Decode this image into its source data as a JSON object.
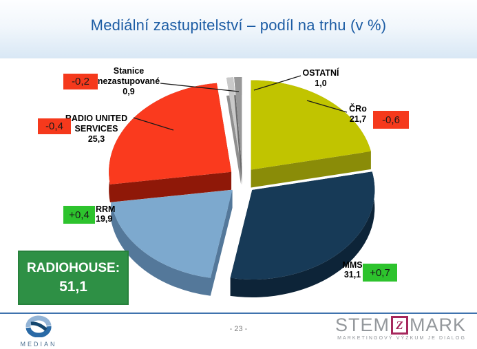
{
  "colors": {
    "title": "#1c5ca4",
    "badge_up": "#2dc32d",
    "badge_down": "#f5391c",
    "badge_text": "#1a1a1a",
    "footer_line": "#3f73ae"
  },
  "slide": {
    "title": "Mediální zastupitelství – podíl na trhu (v %)",
    "page_number": "- 23 -"
  },
  "chart_data": {
    "type": "pie",
    "style": "3d-exploded",
    "title": "Mediální zastupitelství – podíl na trhu (v %)",
    "unit": "% market share",
    "start_angle_deg": 0,
    "direction": "clockwise",
    "legend_position": "none",
    "slices": [
      {
        "label": "ČRo",
        "label_lines": [
          "ČRo"
        ],
        "value": 21.7,
        "value_label": "21,7",
        "change_label": "-0,6",
        "change": "down",
        "color": "#c1c400",
        "side_color": "#8a8c08"
      },
      {
        "label": "MMS",
        "label_lines": [
          "MMS"
        ],
        "value": 31.1,
        "value_label": "31,1",
        "change_label": "+0,7",
        "change": "up",
        "color": "#173a57",
        "side_color": "#0d2438"
      },
      {
        "label": "RRM",
        "label_lines": [
          "RRM"
        ],
        "value": 19.9,
        "value_label": "19,9",
        "change_label": "+0,4",
        "change": "up",
        "color": "#7da9ce",
        "side_color": "#54789a"
      },
      {
        "label": "RADIO UNITED SERVICES",
        "label_lines": [
          "RADIO UNITED",
          "SERVICES"
        ],
        "value": 25.3,
        "value_label": "25,3",
        "change_label": "-0,4",
        "change": "down",
        "color": "#fa3a1e",
        "side_color": "#8f1808"
      },
      {
        "label": "Stanice nezastupované",
        "label_lines": [
          "Stanice",
          "nezastupované"
        ],
        "value": 0.9,
        "value_label": "0,9",
        "change_label": "-0,2",
        "change": "down",
        "color": "#c9c9c9",
        "side_color": "#8f8f8f"
      },
      {
        "label": "OSTATNÍ",
        "label_lines": [
          "OSTATNÍ"
        ],
        "value": 1.0,
        "value_label": "1,0",
        "change_label": null,
        "change": null,
        "color": "#989898",
        "side_color": "#6a6a6a"
      }
    ],
    "callout": {
      "label": "RADIOHOUSE:",
      "value": 51.1,
      "value_label": "51,1",
      "color": "#2e9045",
      "border_color": "#27813c"
    }
  },
  "footer": {
    "median": {
      "name": "MEDIAN"
    },
    "stemmark": {
      "stem": "STEM",
      "mark": "MARK",
      "square_glyph": "Z",
      "tagline": "MARKETINGOVÝ VÝZKUM JE DIALOG"
    }
  }
}
